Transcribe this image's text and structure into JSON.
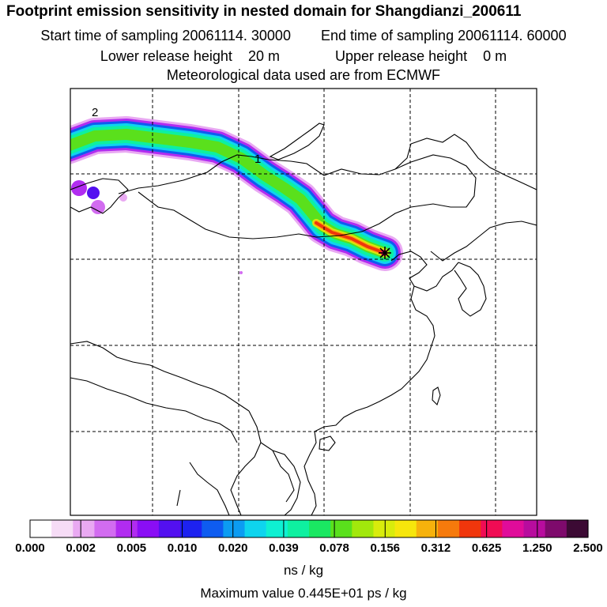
{
  "title": "Footprint emission sensitivity in nested domain for Shangdianzi_200611",
  "sampling": {
    "start_label": "Start time of sampling",
    "start_value": "20061114. 30000",
    "end_label": "End time of sampling",
    "end_value": "20061114. 60000"
  },
  "release": {
    "lower_label": "Lower release height",
    "lower_value": "20 m",
    "upper_label": "Upper release height",
    "upper_value": "0 m"
  },
  "met_line": "Meteorological data used are from ECMWF",
  "map": {
    "region_labels": [
      "2",
      "1"
    ],
    "station_marker": "star-icon",
    "plume_colors": [
      "#ffffff",
      "#f6dcf6",
      "#e9a9f2",
      "#d26cf0",
      "#b12cf0",
      "#8a0ef5",
      "#5310f0",
      "#1d22f0",
      "#0e5cf0",
      "#0c9cf2",
      "#0ed4ee",
      "#0ef0d2",
      "#0ef0a0",
      "#1ae862",
      "#5ae01c",
      "#a2e80c",
      "#d8ec0c",
      "#f6e60c",
      "#f6b20c",
      "#f67a0c",
      "#f0360c",
      "#f00c54",
      "#e00c9a",
      "#b80c9e",
      "#7e0a6c",
      "#3c0a34"
    ]
  },
  "colorbar": {
    "ticks": [
      "0.000",
      "0.002",
      "0.005",
      "0.010",
      "0.020",
      "0.039",
      "0.078",
      "0.156",
      "0.312",
      "0.625",
      "1.250",
      "2.500"
    ],
    "unit": "ns / kg"
  },
  "max_value": "Maximum value  0.445E+01 ps / kg"
}
